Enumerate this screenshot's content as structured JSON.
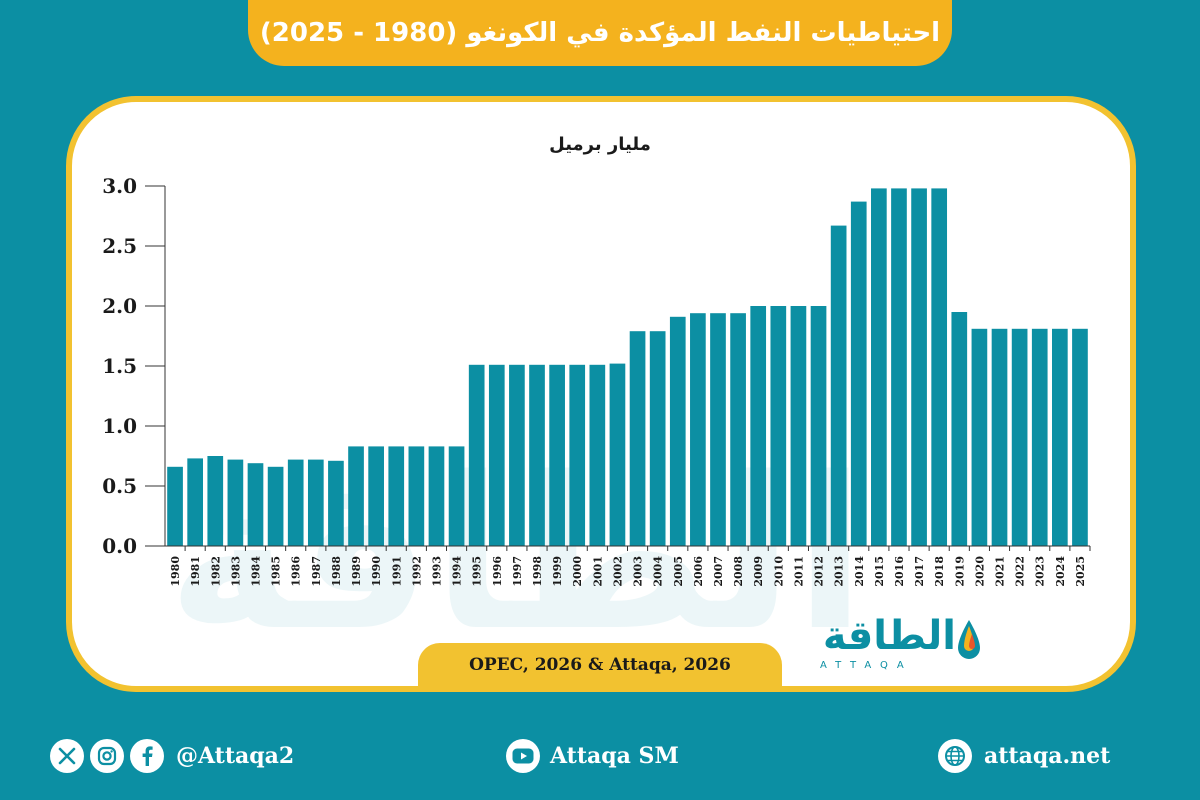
{
  "title": "احتياطيات النفط المؤكدة في الكونغو (1980 - 2025)",
  "chart_data": {
    "type": "bar",
    "ylabel": "مليار برميل",
    "ylim": [
      0,
      3
    ],
    "y_ticks": [
      "0.0",
      "0.5",
      "1.0",
      "1.5",
      "2.0",
      "2.5",
      "3.0"
    ],
    "categories": [
      "1980",
      "1981",
      "1982",
      "1983",
      "1984",
      "1985",
      "1986",
      "1987",
      "1988",
      "1989",
      "1990",
      "1991",
      "1992",
      "1993",
      "1994",
      "1995",
      "1996",
      "1997",
      "1998",
      "1999",
      "2000",
      "2001",
      "2002",
      "2003",
      "2004",
      "2005",
      "2006",
      "2007",
      "2008",
      "2009",
      "2010",
      "2011",
      "2012",
      "2013",
      "2014",
      "2015",
      "2016",
      "2017",
      "2018",
      "2019",
      "2020",
      "2021",
      "2022",
      "2023",
      "2024",
      "2025"
    ],
    "values": [
      0.66,
      0.73,
      0.75,
      0.72,
      0.69,
      0.66,
      0.72,
      0.72,
      0.71,
      0.83,
      0.83,
      0.83,
      0.83,
      0.83,
      0.83,
      1.51,
      1.51,
      1.51,
      1.51,
      1.51,
      1.51,
      1.51,
      1.52,
      1.79,
      1.79,
      1.91,
      1.94,
      1.94,
      1.94,
      2.0,
      2.0,
      2.0,
      2.0,
      2.67,
      2.87,
      2.98,
      2.98,
      2.98,
      2.98,
      1.95,
      1.81,
      1.81,
      1.81,
      1.81,
      1.81,
      1.81
    ],
    "grid": false,
    "bar_color": "#0c8fa3"
  },
  "source": "OPEC, 2026 & Attaqa, 2026",
  "logo": {
    "arabic": "الطاقة",
    "latin": "ATTAQA"
  },
  "watermark_text": "الطاقة",
  "footer": {
    "social_handle": "@Attaqa2",
    "youtube": "Attaqa SM",
    "website": "attaqa.net"
  },
  "icons": [
    "x-icon",
    "instagram-icon",
    "facebook-icon",
    "youtube-icon",
    "globe-icon"
  ]
}
